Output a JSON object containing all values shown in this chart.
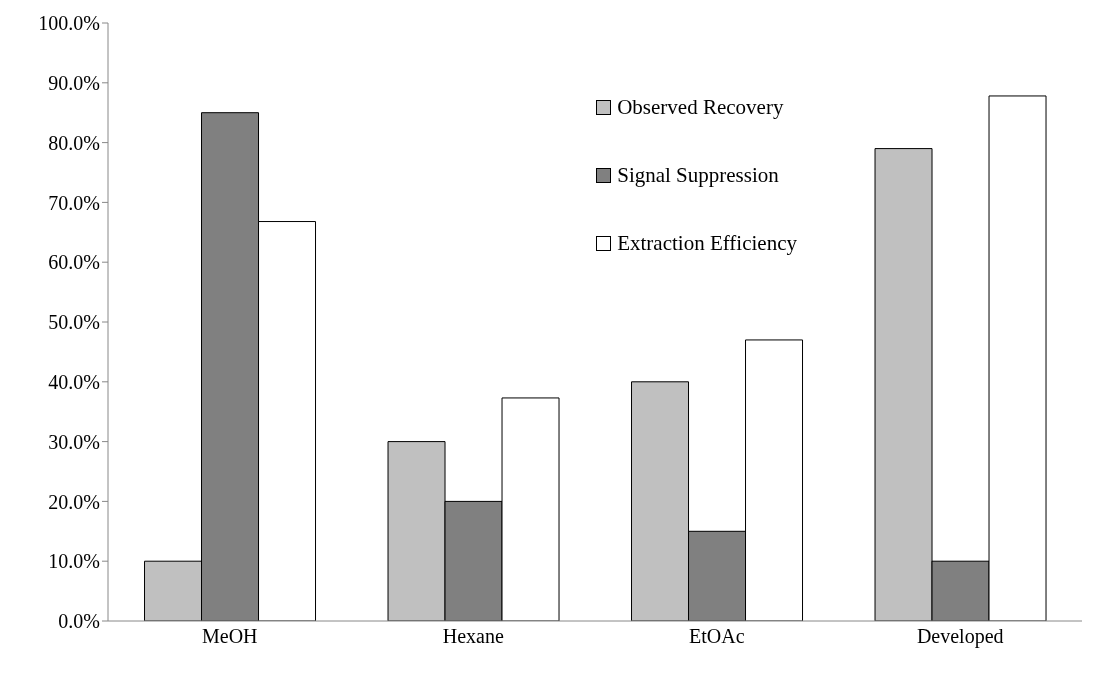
{
  "chart_data": {
    "type": "bar",
    "categories": [
      "MeOH",
      "Hexane",
      "EtOAc",
      "Developed"
    ],
    "series": [
      {
        "name": "Observed Recovery",
        "color": "#c0c0c0",
        "values": [
          10,
          30,
          40,
          79
        ]
      },
      {
        "name": "Signal Suppression",
        "color": "#808080",
        "values": [
          85,
          20,
          15,
          10
        ]
      },
      {
        "name": "Extraction Efficiency",
        "color": "#ffffff",
        "values": [
          66.8,
          37.3,
          47,
          87.8
        ]
      }
    ],
    "ylim": [
      0,
      100
    ],
    "yticks": [
      {
        "value": 0,
        "label": "0.0%"
      },
      {
        "value": 10,
        "label": "10.0%"
      },
      {
        "value": 20,
        "label": "20.0%"
      },
      {
        "value": 30,
        "label": "30.0%"
      },
      {
        "value": 40,
        "label": "40.0%"
      },
      {
        "value": 50,
        "label": "50.0%"
      },
      {
        "value": 60,
        "label": "60.0%"
      },
      {
        "value": 70,
        "label": "70.0%"
      },
      {
        "value": 80,
        "label": "80.0%"
      },
      {
        "value": 90,
        "label": "90.0%"
      },
      {
        "value": 100,
        "label": "100.0%"
      }
    ],
    "grid": false,
    "legend": "top right"
  }
}
